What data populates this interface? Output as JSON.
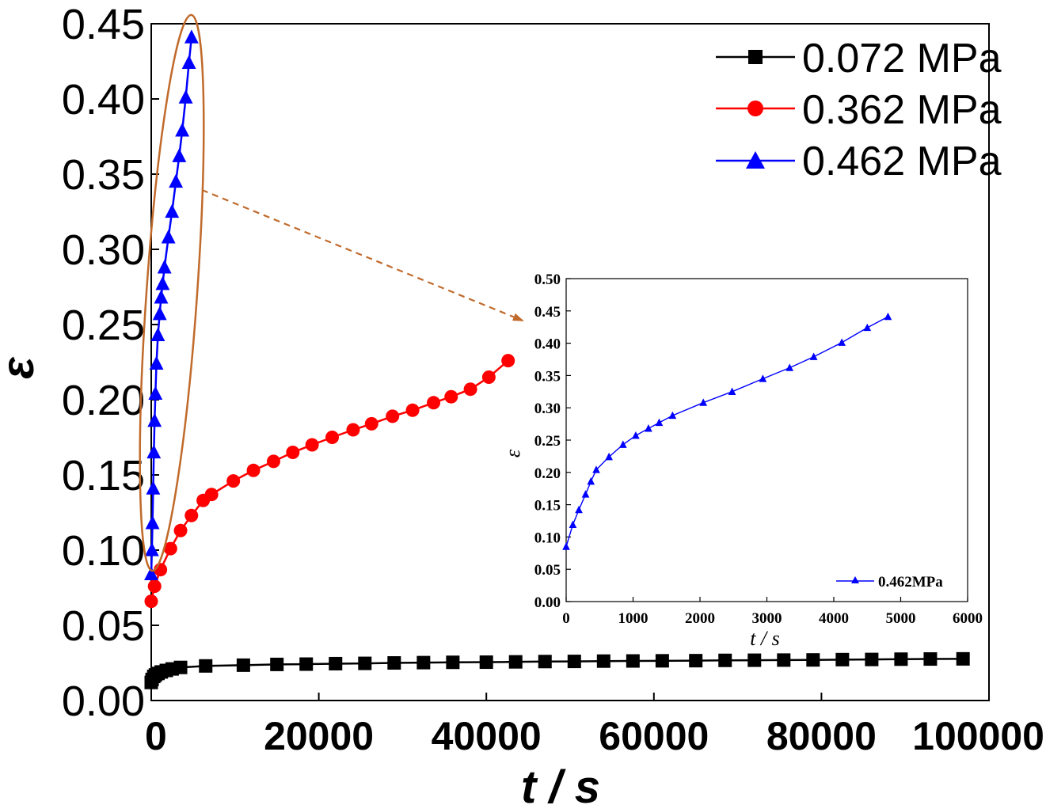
{
  "chart_data": [
    {
      "type": "line",
      "xlabel": "t / s",
      "ylabel": "ε",
      "xlim": [
        0,
        100000
      ],
      "ylim": [
        0,
        0.45
      ],
      "xticks": [
        0,
        20000,
        40000,
        60000,
        80000,
        100000
      ],
      "xtick_labels": [
        "0",
        "20000",
        "40000",
        "60000",
        "80000",
        "100000"
      ],
      "yticks": [
        0,
        0.05,
        0.1,
        0.15,
        0.2,
        0.25,
        0.3,
        0.35,
        0.4,
        0.45
      ],
      "ytick_labels": [
        "0.00",
        "0.05",
        "0.10",
        "0.15",
        "0.20",
        "0.25",
        "0.30",
        "0.35",
        "0.40",
        "0.45"
      ],
      "grid": false,
      "legend_position": "top-right",
      "series": [
        {
          "name": "0.072 MPa",
          "color": "#000000",
          "marker": "square",
          "x": [
            0,
            100,
            300,
            500,
            800,
            1200,
            1800,
            2500,
            3500,
            6500,
            11000,
            15000,
            18500,
            22000,
            25500,
            29000,
            32500,
            36000,
            40000,
            43500,
            47000,
            50500,
            54000,
            57500,
            61000,
            65000,
            68500,
            72000,
            75500,
            79000,
            82500,
            86000,
            89500,
            93000,
            96900
          ],
          "y": [
            0.012,
            0.014,
            0.016,
            0.017,
            0.018,
            0.019,
            0.02,
            0.021,
            0.022,
            0.023,
            0.0235,
            0.024,
            0.0242,
            0.0245,
            0.0247,
            0.025,
            0.0252,
            0.0254,
            0.0255,
            0.0257,
            0.0259,
            0.026,
            0.0262,
            0.0263,
            0.0264,
            0.0265,
            0.0267,
            0.0268,
            0.0269,
            0.027,
            0.0272,
            0.0273,
            0.0275,
            0.0276,
            0.0277
          ]
        },
        {
          "name": "0.362 MPa",
          "color": "#ff0000",
          "marker": "circle",
          "x": [
            0,
            400,
            1100,
            2300,
            3500,
            4800,
            6200,
            7200,
            9800,
            12200,
            14600,
            16900,
            19200,
            21600,
            24100,
            26300,
            28800,
            31200,
            33700,
            35800,
            38100,
            40300,
            42600
          ],
          "y": [
            0.066,
            0.076,
            0.087,
            0.101,
            0.113,
            0.123,
            0.133,
            0.137,
            0.146,
            0.153,
            0.159,
            0.165,
            0.17,
            0.175,
            0.18,
            0.184,
            0.189,
            0.193,
            0.198,
            0.202,
            0.207,
            0.215,
            0.226
          ]
        },
        {
          "name": "0.462 MPa",
          "color": "#0000ff",
          "marker": "triangle",
          "x": [
            0,
            80,
            150,
            230,
            310,
            400,
            500,
            620,
            800,
            1010,
            1180,
            1360,
            1580,
            2050,
            2480,
            2940,
            3340,
            3700,
            4120,
            4500,
            4810
          ],
          "y": [
            0.084,
            0.1,
            0.118,
            0.141,
            0.165,
            0.186,
            0.204,
            0.224,
            0.243,
            0.257,
            0.268,
            0.277,
            0.288,
            0.308,
            0.325,
            0.345,
            0.362,
            0.379,
            0.401,
            0.424,
            0.441
          ]
        }
      ],
      "annotations": [
        "ellipse highlighting the 0.462 MPa curve",
        "dashed arrow pointing to the inset"
      ]
    },
    {
      "type": "line",
      "xlabel": "t / s",
      "ylabel": "ε",
      "xlim": [
        0,
        6000
      ],
      "ylim": [
        0,
        0.5
      ],
      "xticks": [
        0,
        1000,
        2000,
        3000,
        4000,
        5000,
        6000
      ],
      "xtick_labels": [
        "0",
        "1000",
        "2000",
        "3000",
        "4000",
        "5000",
        "6000"
      ],
      "yticks": [
        0,
        0.05,
        0.1,
        0.15,
        0.2,
        0.25,
        0.3,
        0.35,
        0.4,
        0.45,
        0.5
      ],
      "ytick_labels": [
        "0.00",
        "0.05",
        "0.10",
        "0.15",
        "0.20",
        "0.25",
        "0.30",
        "0.35",
        "0.40",
        "0.45",
        "0.50"
      ],
      "grid": false,
      "legend_position": "bottom-right",
      "series": [
        {
          "name": "0.462MPa",
          "color": "#0000ff",
          "marker": "triangle",
          "x": [
            0,
            100,
            190,
            290,
            370,
            450,
            640,
            850,
            1040,
            1230,
            1390,
            1590,
            2050,
            2480,
            2940,
            3340,
            3700,
            4120,
            4500,
            4810
          ],
          "y": [
            0.085,
            0.119,
            0.142,
            0.166,
            0.186,
            0.204,
            0.224,
            0.243,
            0.257,
            0.268,
            0.277,
            0.288,
            0.308,
            0.325,
            0.345,
            0.362,
            0.379,
            0.401,
            0.424,
            0.441
          ]
        }
      ]
    }
  ]
}
